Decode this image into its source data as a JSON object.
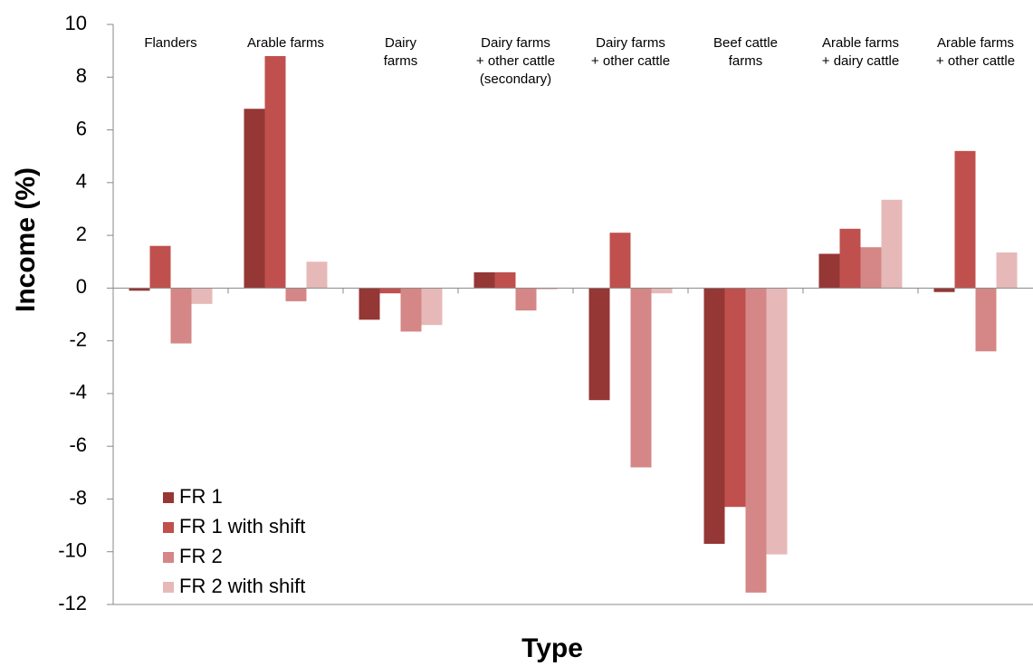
{
  "chart_data": {
    "type": "bar",
    "xlabel": "Type",
    "ylabel": "Income (%)",
    "categories": [
      "Flanders",
      "Arable farms",
      "Dairy\nfarms",
      "Dairy farms\n+ other cattle\n(secondary)",
      "Dairy farms\n+ other cattle",
      "Beef cattle\nfarms",
      "Arable farms\n+ dairy cattle",
      "Arable farms\n+ other cattle"
    ],
    "series": [
      {
        "name": "FR 1",
        "color": "#953735",
        "values": [
          -0.1,
          6.8,
          -1.2,
          0.6,
          -4.25,
          -9.7,
          1.3,
          -0.15
        ]
      },
      {
        "name": "FR 1 with shift",
        "color": "#c0504d",
        "values": [
          1.6,
          8.8,
          -0.2,
          0.6,
          2.1,
          -8.3,
          2.25,
          5.2
        ]
      },
      {
        "name": "FR 2",
        "color": "#d48786",
        "values": [
          -2.1,
          -0.5,
          -1.65,
          -0.85,
          -6.8,
          -11.55,
          1.55,
          -2.4
        ]
      },
      {
        "name": "FR 2 with shift",
        "color": "#e6b9b8",
        "values": [
          -0.6,
          1.0,
          -1.4,
          -0.05,
          -0.2,
          -10.1,
          3.35,
          1.35
        ]
      }
    ],
    "ylim": [
      -12,
      10
    ],
    "yticks": [
      -12,
      -10,
      -8,
      -6,
      -4,
      -2,
      0,
      2,
      4,
      6,
      8,
      10
    ],
    "legend": "lower-left"
  }
}
